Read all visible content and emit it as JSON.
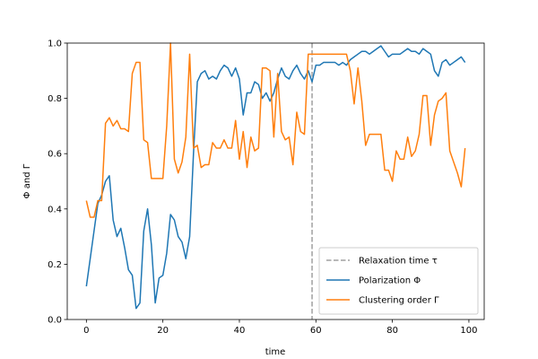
{
  "chart_data": {
    "type": "line",
    "xlabel": "time",
    "ylabel": "Φ and Γ",
    "xlim": [
      -5,
      104
    ],
    "ylim": [
      0,
      1
    ],
    "x_ticks": [
      0,
      20,
      40,
      60,
      80,
      100
    ],
    "y_ticks": [
      0.0,
      0.2,
      0.4,
      0.6,
      0.8,
      1.0
    ],
    "x_tick_labels": [
      "0",
      "20",
      "40",
      "60",
      "80",
      "100"
    ],
    "y_tick_labels": [
      "0.0",
      "0.2",
      "0.4",
      "0.6",
      "0.8",
      "1.0"
    ],
    "grid": false,
    "legend_position": "lower-right",
    "vline": {
      "name": "Relaxation time τ",
      "x": 59,
      "color": "#a0a0a0"
    },
    "series": [
      {
        "name": "Polarization Φ",
        "color": "#1f77b4",
        "x": [
          0,
          1,
          2,
          3,
          4,
          5,
          6,
          7,
          8,
          9,
          10,
          11,
          12,
          13,
          14,
          15,
          16,
          17,
          18,
          19,
          20,
          21,
          22,
          23,
          24,
          25,
          26,
          27,
          28,
          29,
          30,
          31,
          32,
          33,
          34,
          35,
          36,
          37,
          38,
          39,
          40,
          41,
          42,
          43,
          44,
          45,
          46,
          47,
          48,
          49,
          50,
          51,
          52,
          53,
          54,
          55,
          56,
          57,
          58,
          59,
          60,
          61,
          62,
          63,
          64,
          65,
          66,
          67,
          68,
          69,
          70,
          71,
          72,
          73,
          74,
          75,
          76,
          77,
          78,
          79,
          80,
          81,
          82,
          83,
          84,
          85,
          86,
          87,
          88,
          89,
          90,
          91,
          92,
          93,
          94,
          95,
          96,
          97,
          98,
          99
        ],
        "values": [
          0.12,
          0.22,
          0.32,
          0.42,
          0.45,
          0.5,
          0.52,
          0.36,
          0.3,
          0.33,
          0.26,
          0.18,
          0.16,
          0.04,
          0.06,
          0.32,
          0.4,
          0.27,
          0.06,
          0.15,
          0.16,
          0.24,
          0.38,
          0.36,
          0.3,
          0.28,
          0.22,
          0.3,
          0.6,
          0.86,
          0.89,
          0.9,
          0.87,
          0.88,
          0.87,
          0.9,
          0.92,
          0.91,
          0.88,
          0.91,
          0.87,
          0.74,
          0.82,
          0.82,
          0.86,
          0.85,
          0.8,
          0.82,
          0.79,
          0.82,
          0.87,
          0.91,
          0.88,
          0.87,
          0.9,
          0.92,
          0.89,
          0.87,
          0.9,
          0.86,
          0.92,
          0.92,
          0.93,
          0.93,
          0.93,
          0.93,
          0.92,
          0.93,
          0.92,
          0.94,
          0.95,
          0.96,
          0.97,
          0.97,
          0.96,
          0.97,
          0.98,
          0.99,
          0.97,
          0.95,
          0.96,
          0.96,
          0.96,
          0.97,
          0.98,
          0.97,
          0.97,
          0.96,
          0.98,
          0.97,
          0.96,
          0.9,
          0.88,
          0.93,
          0.94,
          0.92,
          0.93,
          0.94,
          0.95,
          0.93
        ]
      },
      {
        "name": "Clustering order Γ",
        "color": "#ff7f0e",
        "x": [
          0,
          1,
          2,
          3,
          4,
          5,
          6,
          7,
          8,
          9,
          10,
          11,
          12,
          13,
          14,
          15,
          16,
          17,
          18,
          19,
          20,
          21,
          22,
          23,
          24,
          25,
          26,
          27,
          28,
          29,
          30,
          31,
          32,
          33,
          34,
          35,
          36,
          37,
          38,
          39,
          40,
          41,
          42,
          43,
          44,
          45,
          46,
          47,
          48,
          49,
          50,
          51,
          52,
          53,
          54,
          55,
          56,
          57,
          58,
          59,
          60,
          61,
          62,
          63,
          64,
          65,
          66,
          67,
          68,
          69,
          70,
          71,
          72,
          73,
          74,
          75,
          76,
          77,
          78,
          79,
          80,
          81,
          82,
          83,
          84,
          85,
          86,
          87,
          88,
          89,
          90,
          91,
          92,
          93,
          94,
          95,
          96,
          97,
          98,
          99
        ],
        "values": [
          0.43,
          0.37,
          0.37,
          0.43,
          0.43,
          0.71,
          0.73,
          0.7,
          0.72,
          0.69,
          0.69,
          0.68,
          0.89,
          0.93,
          0.93,
          0.65,
          0.64,
          0.51,
          0.51,
          0.51,
          0.51,
          0.7,
          1.0,
          0.58,
          0.53,
          0.57,
          0.66,
          0.96,
          0.62,
          0.63,
          0.55,
          0.56,
          0.56,
          0.64,
          0.62,
          0.62,
          0.65,
          0.62,
          0.62,
          0.72,
          0.58,
          0.68,
          0.55,
          0.66,
          0.61,
          0.62,
          0.91,
          0.91,
          0.9,
          0.66,
          0.89,
          0.68,
          0.65,
          0.66,
          0.56,
          0.75,
          0.68,
          0.67,
          0.96,
          0.96,
          0.96,
          0.96,
          0.96,
          0.96,
          0.96,
          0.96,
          0.96,
          0.96,
          0.96,
          0.9,
          0.78,
          0.91,
          0.79,
          0.63,
          0.67,
          0.67,
          0.67,
          0.67,
          0.54,
          0.54,
          0.5,
          0.61,
          0.58,
          0.58,
          0.66,
          0.59,
          0.61,
          0.67,
          0.81,
          0.81,
          0.63,
          0.74,
          0.79,
          0.8,
          0.82,
          0.61,
          0.57,
          0.53,
          0.48,
          0.62
        ]
      }
    ]
  }
}
